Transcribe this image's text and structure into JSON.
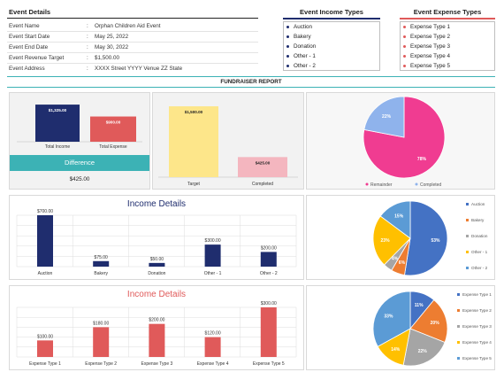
{
  "event_details": {
    "title": "Event Details",
    "rows": [
      {
        "label": "Event Name",
        "value": "Orphan Children Aid Event"
      },
      {
        "label": "Event Start Date",
        "value": "May 25, 2022"
      },
      {
        "label": "Event End Date",
        "value": "May 30, 2022"
      },
      {
        "label": "Event Revenue Target",
        "value": "$1,500.00"
      },
      {
        "label": "Event Address",
        "value": "XXXX Street YYYY Venue ZZ State"
      }
    ]
  },
  "income_types": {
    "title": "Event Income Types",
    "items": [
      "Auction",
      "Bakery",
      "Donation",
      "Other - 1",
      "Other - 2"
    ]
  },
  "expense_types": {
    "title": "Event Expense Types",
    "items": [
      "Expense Type 1",
      "Expense Type 2",
      "Expense Type 3",
      "Expense Type 4",
      "Expense Type 5"
    ]
  },
  "report_title": "FUNDRAISER REPORT",
  "summary": {
    "difference_label": "Difference",
    "difference_value": "$425.00"
  },
  "colors": {
    "navy": "#1f2d6e",
    "red": "#e05a5a",
    "teal": "#3cb2b5",
    "yellow": "#fde68a",
    "pink": "#f4b6bf",
    "pie_pink": "#f03c91",
    "pie_blue": "#8fb3ec"
  },
  "chart_data": [
    {
      "type": "bar",
      "categories": [
        "Total Income",
        "Total Expense"
      ],
      "values": [
        1325,
        900
      ],
      "value_labels": [
        "$1,325.00",
        "$900.00"
      ]
    },
    {
      "type": "bar",
      "categories": [
        "Target",
        "Completed"
      ],
      "values": [
        1500,
        425
      ],
      "value_labels": [
        "$1,500.00",
        "$425.00"
      ]
    },
    {
      "type": "pie",
      "categories": [
        "Remainder",
        "Completed"
      ],
      "values": [
        78,
        22
      ],
      "value_labels": [
        "78%",
        "22%"
      ]
    },
    {
      "type": "bar",
      "title": "Income Details",
      "categories": [
        "Auction",
        "Bakery",
        "Donation",
        "Other - 1",
        "Other - 2"
      ],
      "values": [
        700,
        75,
        50,
        300,
        200
      ],
      "value_labels": [
        "$700.00",
        "$75.00",
        "$50.00",
        "$300.00",
        "$200.00"
      ]
    },
    {
      "type": "pie",
      "categories": [
        "Auction",
        "Bakery",
        "Donation",
        "Other - 1",
        "Other - 2"
      ],
      "values": [
        53,
        6,
        4,
        23,
        15
      ],
      "value_labels": [
        "53%",
        "6%",
        "4%",
        "23%",
        "15%"
      ]
    },
    {
      "type": "bar",
      "title": "Income Details",
      "categories": [
        "Expense Type 1",
        "Expense Type 2",
        "Expense Type 3",
        "Expense Type 4",
        "Expense Type 5"
      ],
      "values": [
        100,
        180,
        200,
        120,
        300
      ],
      "value_labels": [
        "$100.00",
        "$180.00",
        "$200.00",
        "$120.00",
        "$300.00"
      ]
    },
    {
      "type": "pie",
      "categories": [
        "Expense Type 1",
        "Expense Type 2",
        "Expense Type 3",
        "Expense Type 4",
        "Expense Type 5"
      ],
      "values": [
        11,
        20,
        22,
        14,
        33
      ],
      "value_labels": [
        "11%",
        "20%",
        "22%",
        "14%",
        "33%"
      ]
    }
  ]
}
